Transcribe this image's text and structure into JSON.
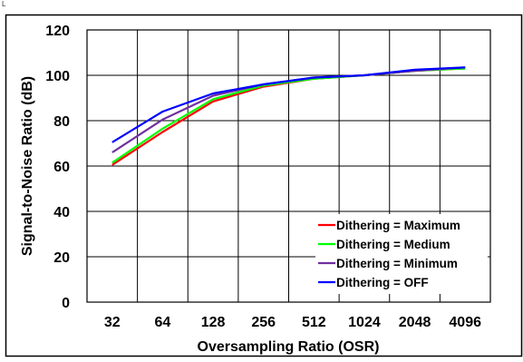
{
  "corner_mark": "L",
  "chart_data": {
    "type": "line",
    "title": "",
    "xlabel": "Oversampling Ratio (OSR)",
    "ylabel": "Signal-to-Noise Ratio (dB)",
    "categories": [
      "32",
      "64",
      "128",
      "256",
      "512",
      "1024",
      "2048",
      "4096"
    ],
    "ylim": [
      0,
      120
    ],
    "yticks": [
      "0",
      "20",
      "40",
      "60",
      "80",
      "100",
      "120"
    ],
    "grid": true,
    "legend_position": "bottom-right",
    "series": [
      {
        "name": "Dithering = Maximum",
        "color": "#ff0000",
        "values": [
          60.5,
          75,
          88.5,
          95,
          98.5,
          100,
          102,
          103
        ]
      },
      {
        "name": "Dithering = Medium",
        "color": "#00ff00",
        "values": [
          61.5,
          76.5,
          89.5,
          95.5,
          98.5,
          100,
          102,
          103
        ]
      },
      {
        "name": "Dithering = Minimum",
        "color": "#7030a0",
        "values": [
          66,
          80.5,
          91,
          96,
          99,
          100,
          102,
          103.5
        ]
      },
      {
        "name": "Dithering = OFF",
        "color": "#0000ff",
        "values": [
          70.5,
          84,
          92,
          96,
          99,
          100,
          102.5,
          103.5
        ]
      }
    ]
  }
}
